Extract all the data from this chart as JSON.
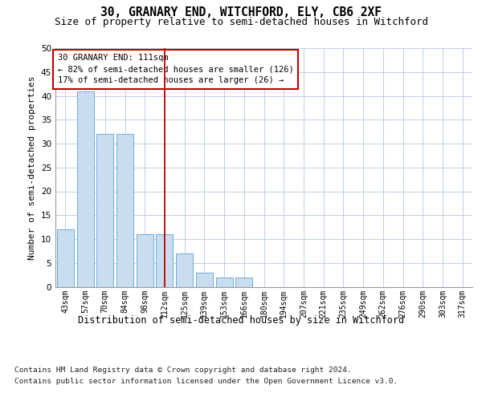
{
  "title": "30, GRANARY END, WITCHFORD, ELY, CB6 2XF",
  "subtitle": "Size of property relative to semi-detached houses in Witchford",
  "xlabel": "Distribution of semi-detached houses by size in Witchford",
  "ylabel": "Number of semi-detached properties",
  "categories": [
    "43sqm",
    "57sqm",
    "70sqm",
    "84sqm",
    "98sqm",
    "112sqm",
    "125sqm",
    "139sqm",
    "153sqm",
    "166sqm",
    "180sqm",
    "194sqm",
    "207sqm",
    "221sqm",
    "235sqm",
    "249sqm",
    "262sqm",
    "276sqm",
    "290sqm",
    "303sqm",
    "317sqm"
  ],
  "values": [
    12,
    41,
    32,
    32,
    11,
    11,
    7,
    3,
    2,
    2,
    0,
    0,
    0,
    0,
    0,
    0,
    0,
    0,
    0,
    0,
    0
  ],
  "bar_color": "#c9ddf0",
  "bar_edge_color": "#6baed6",
  "red_line_x": 5,
  "annotation_line1": "30 GRANARY END: 111sqm",
  "annotation_line2": "← 82% of semi-detached houses are smaller (126)",
  "annotation_line3": "17% of semi-detached houses are larger (26) →",
  "annotation_box_color": "#ffffff",
  "annotation_box_edge_color": "#c00000",
  "ylim": [
    0,
    50
  ],
  "yticks": [
    0,
    5,
    10,
    15,
    20,
    25,
    30,
    35,
    40,
    45,
    50
  ],
  "footnote1": "Contains HM Land Registry data © Crown copyright and database right 2024.",
  "footnote2": "Contains public sector information licensed under the Open Government Licence v3.0.",
  "bg_color": "#ffffff",
  "grid_color": "#b8c8de"
}
